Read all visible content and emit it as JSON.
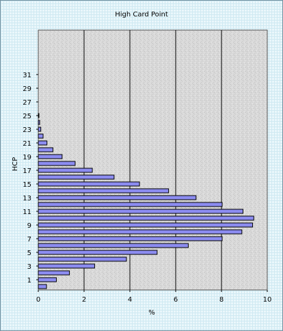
{
  "chart_data": {
    "type": "bar",
    "orientation": "horizontal",
    "title": "High Card Point",
    "xlabel": "%",
    "ylabel": "HCP",
    "xlim": [
      0,
      10
    ],
    "x_ticks": [
      0,
      2,
      4,
      6,
      8,
      10
    ],
    "y_ticks": [
      1,
      3,
      5,
      7,
      9,
      11,
      13,
      15,
      17,
      19,
      21,
      23,
      25,
      27,
      29,
      31
    ],
    "categories": [
      0,
      1,
      2,
      3,
      4,
      5,
      6,
      7,
      8,
      9,
      10,
      11,
      12,
      13,
      14,
      15,
      16,
      17,
      18,
      19,
      20,
      21,
      22,
      23,
      24,
      25,
      26,
      27,
      28,
      29,
      30,
      31,
      32,
      33,
      34,
      35,
      36,
      37
    ],
    "values": [
      0.36,
      0.79,
      1.36,
      2.46,
      3.85,
      5.19,
      6.55,
      8.03,
      8.89,
      9.36,
      9.41,
      8.94,
      8.03,
      6.89,
      5.69,
      4.42,
      3.31,
      2.36,
      1.61,
      1.04,
      0.64,
      0.38,
      0.21,
      0.11,
      0.06,
      0.03,
      0.01,
      0.007,
      0.003,
      0.001,
      0.0005,
      0.0002,
      0,
      0,
      0,
      0,
      0,
      0
    ],
    "bar_color": "#8c8cf0",
    "grid": true
  }
}
